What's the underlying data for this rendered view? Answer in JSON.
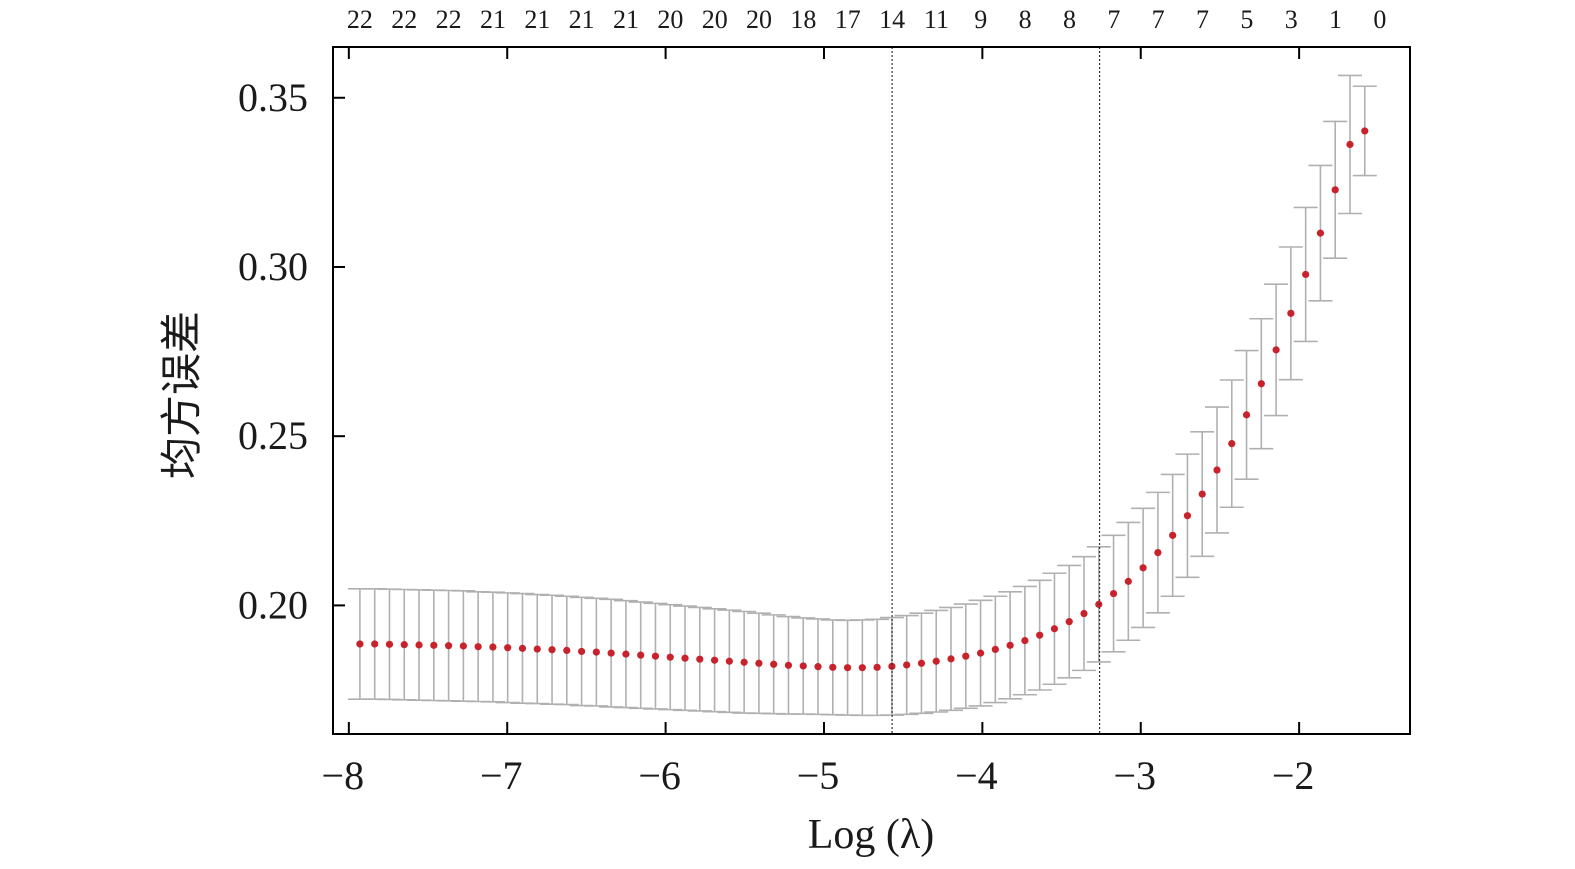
{
  "chart_data": {
    "type": "scatter",
    "xlabel": "Log (λ)",
    "ylabel": "均方误差",
    "xlim": [
      -8.1,
      -1.3
    ],
    "ylim": [
      0.162,
      0.365
    ],
    "x_ticks": [
      -8,
      -7,
      -6,
      -5,
      -4,
      -3,
      -2
    ],
    "x_tick_labels": [
      "−8",
      "−7",
      "−6",
      "−5",
      "−4",
      "−3",
      "−2"
    ],
    "y_ticks": [
      0.2,
      0.25,
      0.3,
      0.35
    ],
    "y_tick_labels": [
      "0.20",
      "0.25",
      "0.30",
      "0.35"
    ],
    "top_axis": {
      "positions": [
        -7.93,
        -7.65,
        -7.37,
        -7.09,
        -6.81,
        -6.53,
        -6.25,
        -5.97,
        -5.69,
        -5.41,
        -5.13,
        -4.85,
        -4.57,
        -4.29,
        -4.01,
        -3.73,
        -3.45,
        -3.17,
        -2.89,
        -2.61,
        -2.33,
        -2.05,
        -1.77,
        -1.49
      ],
      "labels": [
        "22",
        "22",
        "22",
        "21",
        "21",
        "21",
        "21",
        "20",
        "20",
        "20",
        "18",
        "17",
        "14",
        "11",
        "9",
        "8",
        "8",
        "7",
        "7",
        "7",
        "5",
        "3",
        "1",
        "0"
      ]
    },
    "vlines": [
      -4.57,
      -3.26
    ],
    "grid": false,
    "legend": "none",
    "colors": {
      "point": "#c8232c",
      "errorbar": "#b0b0b0",
      "axis": "#000000",
      "vline": "#333333"
    },
    "x_start": -7.93,
    "x_step": 0.0933,
    "values": [
      0.1886,
      0.1886,
      0.1885,
      0.1884,
      0.1883,
      0.1882,
      0.1881,
      0.188,
      0.1878,
      0.1877,
      0.1875,
      0.1873,
      0.1871,
      0.1869,
      0.1867,
      0.1864,
      0.1862,
      0.1859,
      0.1856,
      0.1853,
      0.185,
      0.1847,
      0.1844,
      0.1841,
      0.1838,
      0.1835,
      0.1832,
      0.1829,
      0.1826,
      0.1823,
      0.1821,
      0.1819,
      0.1817,
      0.1816,
      0.1816,
      0.1817,
      0.182,
      0.1824,
      0.1829,
      0.1835,
      0.1842,
      0.185,
      0.1859,
      0.187,
      0.1882,
      0.1896,
      0.1912,
      0.1931,
      0.1952,
      0.1976,
      0.2003,
      0.2035,
      0.2071,
      0.2111,
      0.2156,
      0.2207,
      0.2265,
      0.2329,
      0.24,
      0.2478,
      0.2563,
      0.2655,
      0.2755,
      0.2863,
      0.2978,
      0.31,
      0.3228,
      0.3362,
      0.3402
    ],
    "errors": [
      0.0163,
      0.0163,
      0.0163,
      0.0163,
      0.0163,
      0.0163,
      0.0163,
      0.0163,
      0.0162,
      0.0162,
      0.0162,
      0.0162,
      0.0161,
      0.0161,
      0.016,
      0.016,
      0.0159,
      0.0159,
      0.0158,
      0.0157,
      0.0156,
      0.0155,
      0.0154,
      0.0153,
      0.0152,
      0.0151,
      0.015,
      0.0148,
      0.0146,
      0.0144,
      0.0142,
      0.0141,
      0.014,
      0.014,
      0.0141,
      0.0142,
      0.0144,
      0.0146,
      0.0148,
      0.015,
      0.0152,
      0.0154,
      0.0156,
      0.0157,
      0.0158,
      0.016,
      0.0162,
      0.0164,
      0.0166,
      0.0168,
      0.017,
      0.0172,
      0.0174,
      0.0176,
      0.0178,
      0.018,
      0.0182,
      0.0184,
      0.0186,
      0.0188,
      0.019,
      0.0192,
      0.0194,
      0.0196,
      0.0198,
      0.02,
      0.0202,
      0.0204,
      0.0132
    ]
  }
}
